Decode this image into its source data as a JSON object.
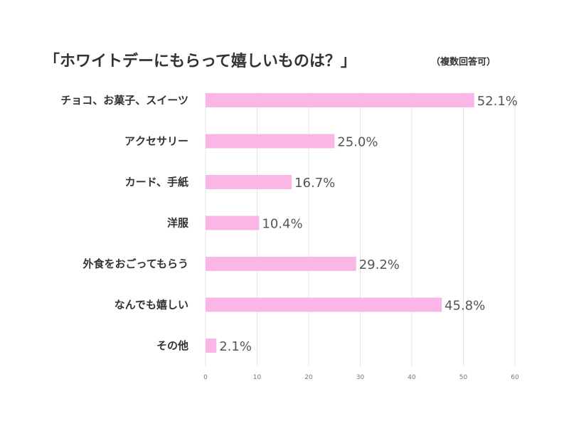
{
  "chart_data": {
    "type": "bar",
    "orientation": "horizontal",
    "title": "「ホワイトデーにもらって嬉しいものは？」",
    "subtitle": "（複数回答可）",
    "categories": [
      "チョコ、お菓子、スイーツ",
      "アクセサリー",
      "カード、手紙",
      "洋服",
      "外食をおごってもらう",
      "なんでも嬉しい",
      "その他"
    ],
    "values": [
      52.1,
      25.0,
      16.7,
      10.4,
      29.2,
      45.8,
      2.1
    ],
    "data_labels": [
      "52.1%",
      "25.0%",
      "16.7%",
      "10.4%",
      "29.2%",
      "45.8%",
      "2.1%"
    ],
    "xlim": [
      0,
      60
    ],
    "xticks": [
      "0",
      "10",
      "20",
      "30",
      "40",
      "50",
      "60"
    ],
    "grid": true,
    "bar_color": "#fbb6e8"
  }
}
